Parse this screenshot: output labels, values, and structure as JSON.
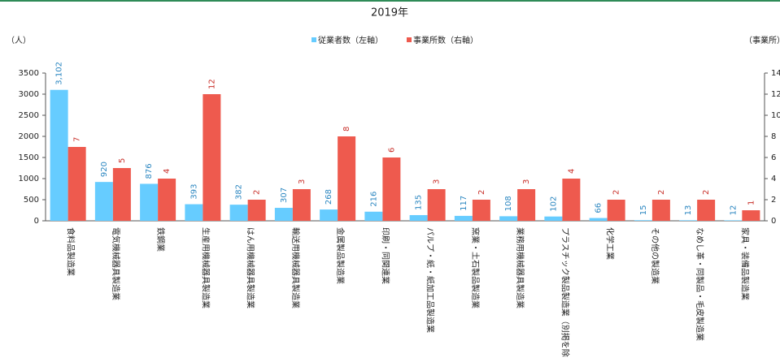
{
  "chart_data": {
    "type": "bar",
    "title": "2019年",
    "y_label": "（人）",
    "y2_label": "（事業所）",
    "categories": [
      "食料品製造業",
      "電気機械器具製造業",
      "鉄鋼業",
      "生産用機械器具製造業",
      "はん用機械器具製造業",
      "輸送用機械器具製造業",
      "金属製品製造業",
      "印刷・同関連業",
      "パルプ・紙・紙加工品製造業",
      "窯業・土石製品製造業",
      "業務用機械器具製造業",
      "プラスチック製品製造業（別掲を除く）",
      "化学工業",
      "その他の製造業",
      "なめし革・同製品・毛皮製造業",
      "家具・装備品製造業"
    ],
    "series": [
      {
        "name": "従業者数（左軸）",
        "color": "#66ccff",
        "label_color": "#2a86c0",
        "values": [
          3102,
          920,
          876,
          393,
          382,
          307,
          268,
          216,
          135,
          117,
          108,
          102,
          66,
          15,
          13,
          12
        ],
        "value_labels": [
          "3,102",
          "920",
          "876",
          "393",
          "382",
          "307",
          "268",
          "216",
          "135",
          "117",
          "108",
          "102",
          "66",
          "15",
          "13",
          "12"
        ]
      },
      {
        "name": "事業所数（右軸）",
        "color": "#ee5a4e",
        "label_color": "#c8302a",
        "axis": "y2",
        "values": [
          7,
          5,
          4,
          12,
          2,
          3,
          8,
          6,
          3,
          2,
          3,
          4,
          2,
          2,
          2,
          1
        ]
      }
    ],
    "ylim": [
      0,
      3500
    ],
    "yticks": [
      0,
      500,
      1000,
      1500,
      2000,
      2500,
      3000,
      3500
    ],
    "y2lim": [
      0,
      14
    ],
    "y2ticks": [
      0,
      2,
      4,
      6,
      8,
      10,
      12,
      14
    ]
  }
}
